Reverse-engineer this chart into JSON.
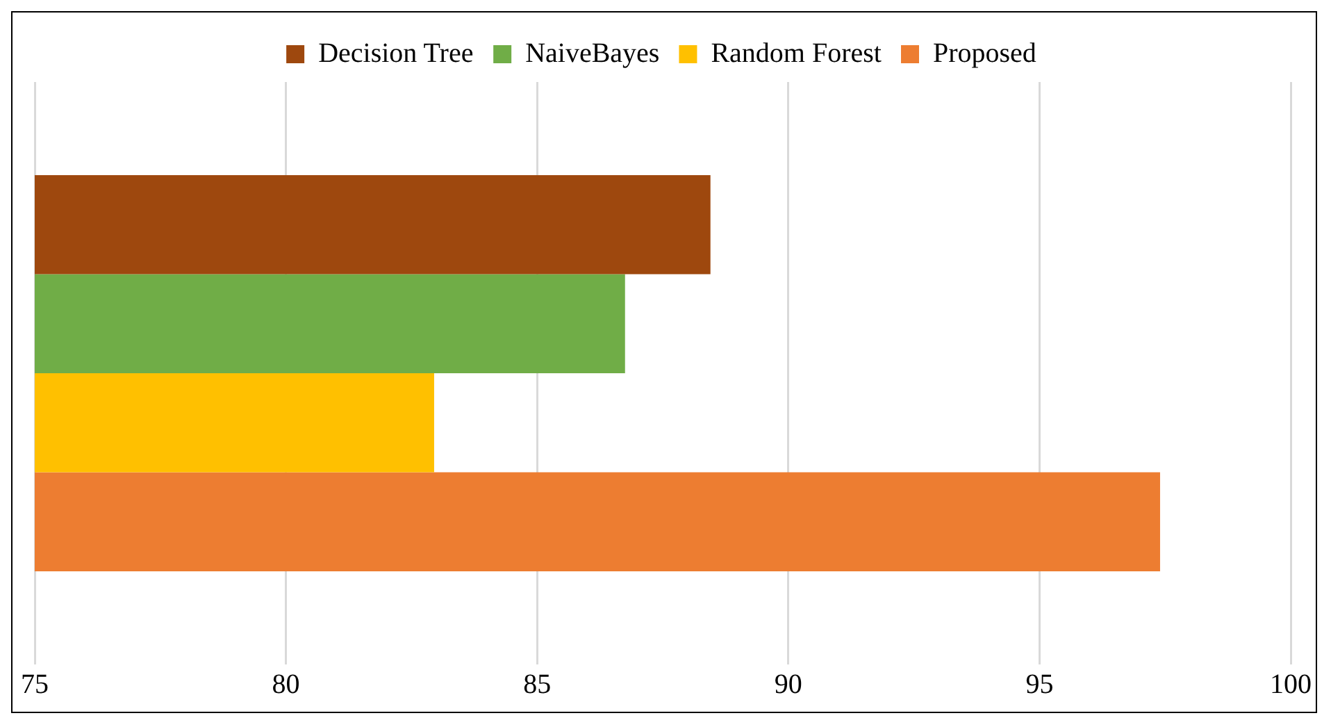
{
  "chart_data": {
    "type": "bar",
    "orientation": "horizontal",
    "categories": [
      null
    ],
    "series": [
      {
        "name": "Decision Tree",
        "color": "#9e480e",
        "values": [
          88.45
        ]
      },
      {
        "name": "NaiveBayes",
        "color": "#70ad47",
        "values": [
          86.75
        ]
      },
      {
        "name": "Random Forest",
        "color": "#ffc000",
        "values": [
          82.95
        ]
      },
      {
        "name": "Proposed",
        "color": "#ed7d31",
        "values": [
          97.4
        ]
      }
    ],
    "xlim": [
      75,
      100
    ],
    "xticks": [
      75,
      80,
      85,
      90,
      95,
      100
    ],
    "grid": "x",
    "legend": "top"
  }
}
